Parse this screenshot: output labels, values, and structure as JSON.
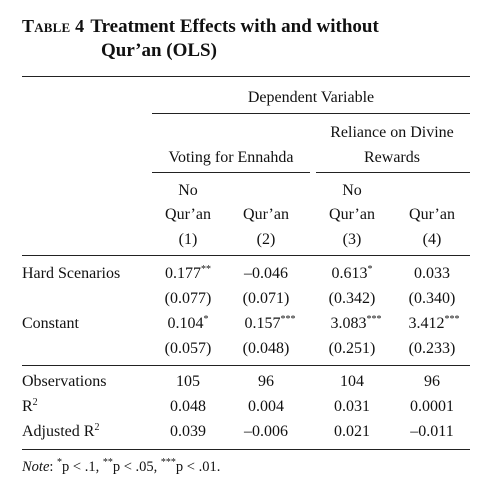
{
  "table": {
    "label": "Table 4",
    "title_line1": "Treatment Effects with and without",
    "title_line2": "Qur’an (OLS)",
    "dep_var_header": "Dependent Variable",
    "group1": "Voting for Ennahda",
    "group2_line1": "Reliance on Divine",
    "group2_line2": "Rewards",
    "columns": [
      {
        "line1": "No",
        "line2": "Qur’an",
        "num": "(1)"
      },
      {
        "line1": "",
        "line2": "Qur’an",
        "num": "(2)"
      },
      {
        "line1": "No",
        "line2": "Qur’an",
        "num": "(3)"
      },
      {
        "line1": "",
        "line2": "Qur’an",
        "num": "(4)"
      }
    ],
    "rows": {
      "hard": {
        "label": "Hard Scenarios",
        "coef": [
          {
            "v": "0.177",
            "s": "**"
          },
          {
            "v": "–0.046",
            "s": ""
          },
          {
            "v": "0.613",
            "s": "*"
          },
          {
            "v": "0.033",
            "s": ""
          }
        ],
        "se": [
          "(0.077)",
          "(0.071)",
          "(0.342)",
          "(0.340)"
        ]
      },
      "const": {
        "label": "Constant",
        "coef": [
          {
            "v": "0.104",
            "s": "*"
          },
          {
            "v": "0.157",
            "s": "***"
          },
          {
            "v": "3.083",
            "s": "***"
          },
          {
            "v": "3.412",
            "s": "***"
          }
        ],
        "se": [
          "(0.057)",
          "(0.048)",
          "(0.251)",
          "(0.233)"
        ]
      },
      "obs": {
        "label": "Observations",
        "vals": [
          "105",
          "96",
          "104",
          "96"
        ]
      },
      "r2": {
        "label": "R",
        "sup": "2",
        "vals": [
          "0.048",
          "0.004",
          "0.031",
          "0.0001"
        ]
      },
      "adjr2": {
        "label": "Adjusted R",
        "sup": "2",
        "vals": [
          "0.039",
          "–0.006",
          "0.021",
          "–0.011"
        ]
      }
    },
    "note": {
      "label": "Note",
      "colon": ": ",
      "s1": "*",
      "t1": "p < .1, ",
      "s2": "**",
      "t2": "p < .05, ",
      "s3": "***",
      "t3": "p < .01."
    }
  }
}
